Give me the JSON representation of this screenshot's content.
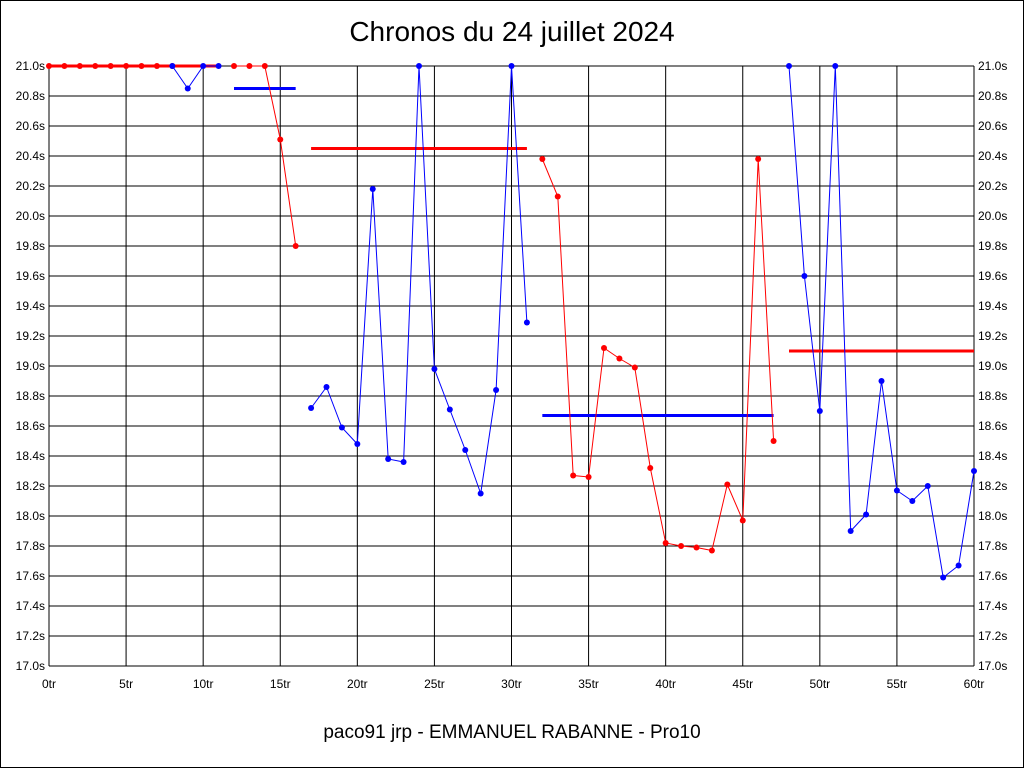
{
  "title": "Chronos du 24 juillet 2024",
  "footer": "paco91 jrp - EMMANUEL RABANNE - Pro10",
  "colors": {
    "red": "#ff0000",
    "blue": "#0000ff",
    "grid": "#000000"
  },
  "chart_data": {
    "type": "line",
    "title": "Chronos du 24 juillet 2024",
    "xlim": [
      0,
      60
    ],
    "ylim": [
      17.0,
      21.0
    ],
    "x_ticks": [
      0,
      5,
      10,
      15,
      20,
      25,
      30,
      35,
      40,
      45,
      50,
      55,
      60
    ],
    "x_tick_labels": [
      "0tr",
      "5tr",
      "10tr",
      "15tr",
      "20tr",
      "25tr",
      "30tr",
      "35tr",
      "40tr",
      "45tr",
      "50tr",
      "55tr",
      "60tr"
    ],
    "y_ticks": [
      17.0,
      17.2,
      17.4,
      17.6,
      17.8,
      18.0,
      18.2,
      18.4,
      18.6,
      18.8,
      19.0,
      19.2,
      19.4,
      19.6,
      19.8,
      20.0,
      20.2,
      20.4,
      20.6,
      20.8,
      21.0
    ],
    "y_tick_labels": [
      "17.0s",
      "17.2s",
      "17.4s",
      "17.6s",
      "17.8s",
      "18.0s",
      "18.2s",
      "18.4s",
      "18.6s",
      "18.8s",
      "19.0s",
      "19.2s",
      "19.4s",
      "19.6s",
      "19.8s",
      "20.0s",
      "20.2s",
      "20.4s",
      "20.6s",
      "20.8s",
      "21.0s"
    ],
    "grid": true,
    "segments": [
      {
        "color": "red",
        "points": [
          [
            0,
            21.0
          ],
          [
            1,
            21.0
          ],
          [
            2,
            21.0
          ],
          [
            3,
            21.0
          ],
          [
            4,
            21.0
          ],
          [
            5,
            21.0
          ],
          [
            6,
            21.0
          ],
          [
            7,
            21.0
          ],
          [
            8,
            21.0
          ]
        ]
      },
      {
        "color": "blue",
        "points": [
          [
            8,
            21.0
          ],
          [
            9,
            20.85
          ],
          [
            10,
            21.0
          ],
          [
            11,
            21.0
          ]
        ]
      },
      {
        "color": "red",
        "points": [
          [
            12,
            21.0
          ],
          [
            13,
            21.0
          ],
          [
            14,
            21.0
          ],
          [
            15,
            20.51
          ],
          [
            16,
            19.8
          ]
        ]
      },
      {
        "color": "blue",
        "points": [
          [
            17,
            18.72
          ],
          [
            18,
            18.86
          ],
          [
            19,
            18.59
          ],
          [
            20,
            18.48
          ],
          [
            21,
            20.18
          ],
          [
            22,
            18.38
          ],
          [
            23,
            18.36
          ],
          [
            24,
            21.0
          ],
          [
            25,
            18.98
          ],
          [
            26,
            18.71
          ],
          [
            27,
            18.44
          ],
          [
            28,
            18.15
          ],
          [
            29,
            18.84
          ],
          [
            30,
            21.0
          ],
          [
            31,
            19.29
          ]
        ]
      },
      {
        "color": "red",
        "points": [
          [
            32,
            20.38
          ],
          [
            33,
            20.13
          ],
          [
            34,
            18.27
          ],
          [
            35,
            18.26
          ],
          [
            36,
            19.12
          ],
          [
            37,
            19.05
          ],
          [
            38,
            18.99
          ],
          [
            39,
            18.32
          ],
          [
            40,
            17.82
          ],
          [
            41,
            17.8
          ],
          [
            42,
            17.79
          ],
          [
            43,
            17.77
          ],
          [
            44,
            18.21
          ],
          [
            45,
            17.97
          ],
          [
            46,
            20.38
          ],
          [
            47,
            18.5
          ]
        ]
      },
      {
        "color": "blue",
        "points": [
          [
            48,
            21.0
          ],
          [
            49,
            19.6
          ],
          [
            50,
            18.7
          ],
          [
            51,
            21.0
          ],
          [
            52,
            17.9
          ],
          [
            53,
            18.01
          ],
          [
            54,
            18.9
          ],
          [
            55,
            18.17
          ],
          [
            56,
            18.1
          ],
          [
            57,
            18.2
          ],
          [
            58,
            17.59
          ],
          [
            59,
            17.67
          ],
          [
            60,
            18.3
          ]
        ]
      }
    ],
    "averages": [
      {
        "color": "red",
        "x": [
          0,
          11
        ],
        "y": 21.0
      },
      {
        "color": "blue",
        "x": [
          12,
          16
        ],
        "y": 20.85
      },
      {
        "color": "red",
        "x": [
          17,
          31
        ],
        "y": 20.45
      },
      {
        "color": "blue",
        "x": [
          32,
          47
        ],
        "y": 18.67
      },
      {
        "color": "red",
        "x": [
          48,
          60
        ],
        "y": 19.1
      }
    ]
  }
}
